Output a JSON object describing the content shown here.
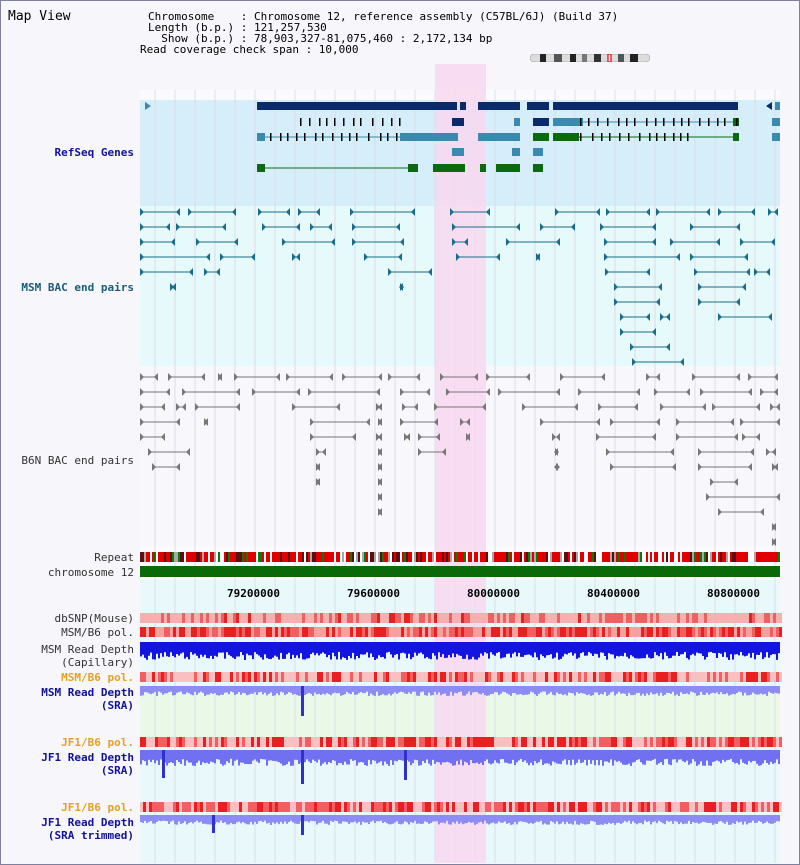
{
  "header": {
    "title": "Map View",
    "chromosome_line": "Chromosome    : Chromosome 12, reference assembly (C57BL/6J) (Build 37)",
    "length_line": "Length (b.p.) : 121,257,530",
    "show_line": "  Show (b.p.) : 78,903,327-81,075,460 : 2,172,134 bp",
    "coverage_line": "Read coverage check span : 10,000"
  },
  "tracks": {
    "refseq": "RefSeq Genes",
    "msm_bac": "MSM BAC end pairs",
    "b6n_bac": "B6N BAC end pairs",
    "repeat": "Repeat",
    "chromosome": "chromosome 12",
    "dbsnp": "dbSNP(Mouse)",
    "msm_b6_pol1": "MSM/B6 pol.",
    "msm_depth_cap_1": "MSM Read Depth",
    "msm_depth_cap_2": "(Capillary)",
    "msm_b6_pol2": "MSM/B6 pol.",
    "msm_depth_sra_1": "MSM Read Depth",
    "msm_depth_sra_2": "(SRA)",
    "jf1_b6_pol1": "JF1/B6 pol.",
    "jf1_depth_sra_1": "JF1 Read Depth",
    "jf1_depth_sra_2": "(SRA)",
    "jf1_b6_pol2": "JF1/B6 pol.",
    "jf1_depth_trim_1": "JF1 Read Depth",
    "jf1_depth_trim_2": "(SRA trimmed)"
  },
  "axis": {
    "ticks": [
      "79200000",
      "79600000",
      "80000000",
      "80400000",
      "80800000"
    ]
  },
  "colors": {
    "highlight": "#f8d8f0",
    "refseq_bg": "#d6eefa",
    "gene_dark": "#0b2a6a",
    "gene_mid": "#3a8ab0",
    "gene_green": "#0a6a10",
    "chrom_green": "#0a6a0a",
    "repeat_red": "#e00000",
    "depth_blue": "#1010e0",
    "depth_light": "#8080f0"
  }
}
